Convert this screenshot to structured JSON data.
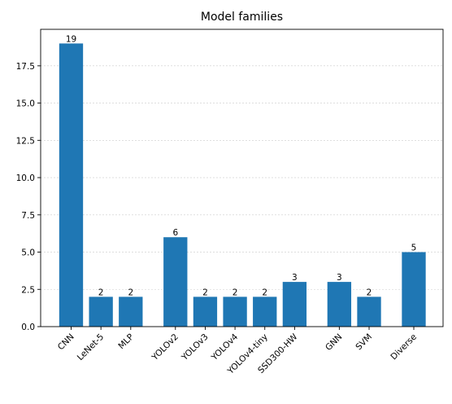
{
  "chart_data": {
    "type": "bar",
    "title": "Model families",
    "xlabel": "",
    "ylabel": "",
    "ylim": [
      0,
      19.95
    ],
    "yticks": [
      0.0,
      2.5,
      5.0,
      7.5,
      10.0,
      12.5,
      15.0,
      17.5
    ],
    "ytick_labels": [
      "0.0",
      "2.5",
      "5.0",
      "7.5",
      "10.0",
      "12.5",
      "15.0",
      "17.5"
    ],
    "grid": "horizontal dotted",
    "bar_color": "#1f77b4",
    "categories": [
      "CNN",
      "LeNet-5",
      "MLP",
      "YOLOv2",
      "YOLOv3",
      "YOLOv4",
      "YOLOv4-tiny",
      "SSD300-HW",
      "GNN",
      "SVM",
      "Diverse"
    ],
    "groups": [
      0,
      0,
      0,
      1,
      1,
      1,
      1,
      1,
      2,
      2,
      3
    ],
    "values": [
      19,
      2,
      2,
      6,
      2,
      2,
      2,
      3,
      3,
      2,
      5
    ],
    "value_labels": [
      "19",
      "2",
      "2",
      "6",
      "2",
      "2",
      "2",
      "3",
      "3",
      "2",
      "5"
    ]
  }
}
